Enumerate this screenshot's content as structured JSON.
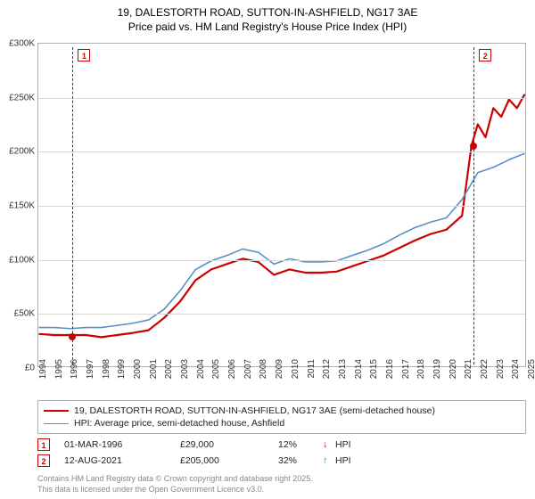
{
  "title_line1": "19, DALESTORTH ROAD, SUTTON-IN-ASHFIELD, NG17 3AE",
  "title_line2": "Price paid vs. HM Land Registry's House Price Index (HPI)",
  "chart": {
    "type": "line",
    "ylim": [
      0,
      300000
    ],
    "ytick_step": 50000,
    "ytick_labels": [
      "£0",
      "£50K",
      "£100K",
      "£150K",
      "£200K",
      "£250K",
      "£300K"
    ],
    "x_years": [
      1994,
      1995,
      1996,
      1997,
      1998,
      1999,
      2000,
      2001,
      2002,
      2003,
      2004,
      2005,
      2006,
      2007,
      2008,
      2009,
      2010,
      2011,
      2012,
      2013,
      2014,
      2015,
      2016,
      2017,
      2018,
      2019,
      2020,
      2021,
      2022,
      2023,
      2024,
      2025
    ],
    "grid_color": "#d8d8d8",
    "border_color": "#b0b0b0",
    "background_color": "#ffffff",
    "series": [
      {
        "name": "price_paid",
        "color": "#cc0000",
        "width": 2.2,
        "label": "19, DALESTORTH ROAD, SUTTON-IN-ASHFIELD, NG17 3AE (semi-detached house)",
        "points": [
          [
            1994,
            30000
          ],
          [
            1995,
            29000
          ],
          [
            1996,
            29000
          ],
          [
            1997,
            29000
          ],
          [
            1998,
            27000
          ],
          [
            1999,
            29000
          ],
          [
            2000,
            31000
          ],
          [
            2001,
            33500
          ],
          [
            2002,
            45000
          ],
          [
            2003,
            60000
          ],
          [
            2004,
            80000
          ],
          [
            2005,
            90000
          ],
          [
            2006,
            95000
          ],
          [
            2007,
            100000
          ],
          [
            2008,
            97000
          ],
          [
            2009,
            85000
          ],
          [
            2010,
            90000
          ],
          [
            2011,
            87000
          ],
          [
            2012,
            87000
          ],
          [
            2013,
            88000
          ],
          [
            2014,
            93000
          ],
          [
            2015,
            98000
          ],
          [
            2016,
            103000
          ],
          [
            2017,
            110000
          ],
          [
            2018,
            117000
          ],
          [
            2019,
            123000
          ],
          [
            2020,
            127000
          ],
          [
            2021,
            140000
          ],
          [
            2021.6,
            205000
          ],
          [
            2022,
            225000
          ],
          [
            2022.5,
            213000
          ],
          [
            2023,
            240000
          ],
          [
            2023.5,
            232000
          ],
          [
            2024,
            248000
          ],
          [
            2024.5,
            240000
          ],
          [
            2025,
            253000
          ]
        ]
      },
      {
        "name": "hpi",
        "color": "#5b8fc7",
        "width": 1.6,
        "label": "HPI: Average price, semi-detached house, Ashfield",
        "points": [
          [
            1994,
            36000
          ],
          [
            1995,
            36000
          ],
          [
            1996,
            35000
          ],
          [
            1997,
            36000
          ],
          [
            1998,
            36000
          ],
          [
            1999,
            38000
          ],
          [
            2000,
            40000
          ],
          [
            2001,
            43000
          ],
          [
            2002,
            53000
          ],
          [
            2003,
            70000
          ],
          [
            2004,
            90000
          ],
          [
            2005,
            98000
          ],
          [
            2006,
            103000
          ],
          [
            2007,
            109000
          ],
          [
            2008,
            106000
          ],
          [
            2009,
            95000
          ],
          [
            2010,
            100000
          ],
          [
            2011,
            97000
          ],
          [
            2012,
            97000
          ],
          [
            2013,
            98000
          ],
          [
            2014,
            103000
          ],
          [
            2015,
            108000
          ],
          [
            2016,
            114000
          ],
          [
            2017,
            122000
          ],
          [
            2018,
            129000
          ],
          [
            2019,
            134000
          ],
          [
            2020,
            138000
          ],
          [
            2021,
            155000
          ],
          [
            2022,
            180000
          ],
          [
            2023,
            185000
          ],
          [
            2024,
            192000
          ],
          [
            2025,
            198000
          ]
        ]
      }
    ],
    "markers": [
      {
        "id": "1",
        "x": 1996.17,
        "y": 29000,
        "color": "#cc0000"
      },
      {
        "id": "2",
        "x": 2021.62,
        "y": 205000,
        "color": "#cc0000"
      }
    ]
  },
  "transactions": [
    {
      "id": "1",
      "date": "01-MAR-1996",
      "price": "£29,000",
      "pct": "12%",
      "arrow": "↓",
      "vs": "HPI",
      "arrow_color": "#cc0000"
    },
    {
      "id": "2",
      "date": "12-AUG-2021",
      "price": "£205,000",
      "pct": "32%",
      "arrow": "↑",
      "vs": "HPI",
      "arrow_color": "#1a8a1a"
    }
  ],
  "attribution_line1": "Contains HM Land Registry data © Crown copyright and database right 2025.",
  "attribution_line2": "This data is licensed under the Open Government Licence v3.0."
}
